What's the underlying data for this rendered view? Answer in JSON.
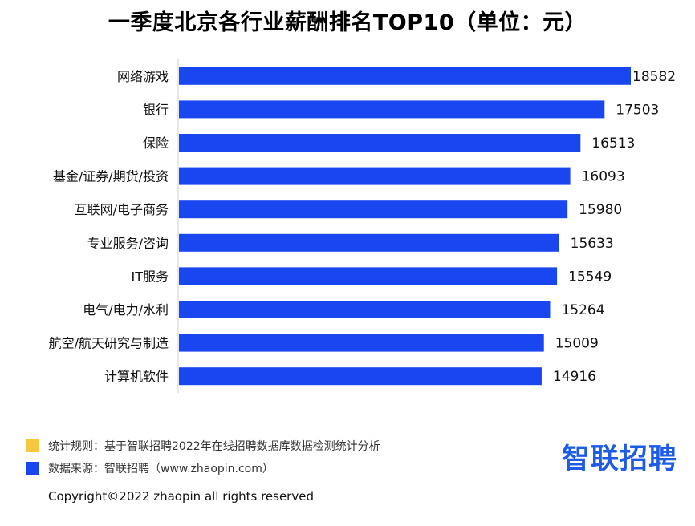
{
  "chart_data": {
    "type": "bar",
    "orientation": "horizontal",
    "title": "一季度北京各行业薪酬排名TOP10（单位：元）",
    "categories": [
      "网络游戏",
      "银行",
      "保险",
      "基金/证券/期货/投资",
      "互联网/电子商务",
      "专业服务/咨询",
      "IT服务",
      "电气/电力/水利",
      "航空/航天研究与制造",
      "计算机软件"
    ],
    "values": [
      18582,
      17503,
      16513,
      16093,
      15980,
      15633,
      15549,
      15264,
      15009,
      14916
    ],
    "xlim": [
      0,
      18582
    ],
    "bar_color": "#1a46f0",
    "xlabel": "",
    "ylabel": ""
  },
  "notes": {
    "rule": "统计规则：基于智联招聘2022年在线招聘数据库数据检测统计分析",
    "source": "数据来源：智联招聘（www.zhaopin.com）",
    "rule_color": "#f5c842",
    "source_color": "#1a46f0"
  },
  "brand": "智联招聘",
  "copyright": "Copyright©2022 zhaopin all rights reserved"
}
